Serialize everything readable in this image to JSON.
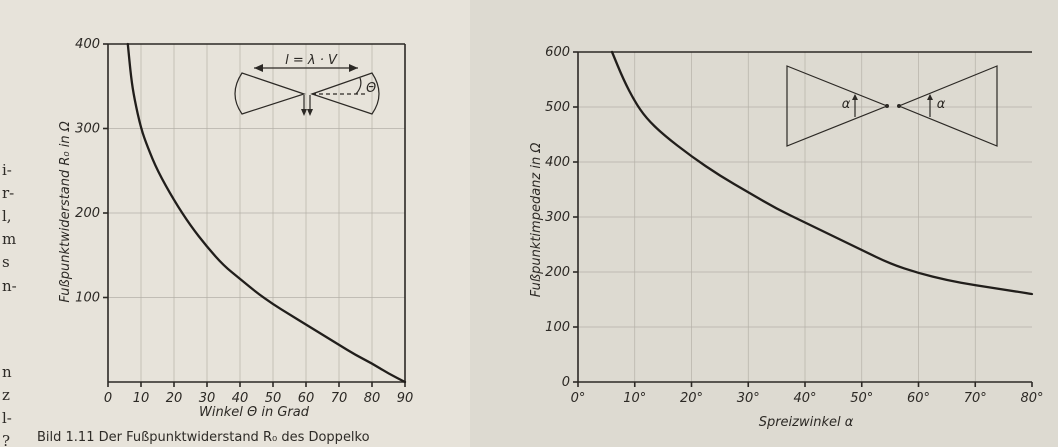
{
  "page": {
    "margin_text": [
      "i-",
      "r-",
      "l,",
      "m",
      "s",
      "n-",
      "n",
      "z",
      "l-",
      "?"
    ],
    "caption_fragment": "Bild 1.11 Der Fußpunktwiderstand R₀ des Doppelko"
  },
  "chart_data": [
    {
      "type": "line",
      "title": "",
      "xlabel": "Winkel Θ in Grad",
      "ylabel": "Fußpunktwiderstand R₀ in Ω",
      "xlim": [
        0,
        90
      ],
      "ylim": [
        0,
        400
      ],
      "x_ticks": [
        "0",
        "10",
        "20",
        "30",
        "40",
        "50",
        "60",
        "70",
        "80",
        "90"
      ],
      "y_ticks": [
        "100",
        "200",
        "300",
        "400"
      ],
      "grid": true,
      "series": [
        {
          "x": [
            6,
            7,
            8,
            10,
            12,
            15,
            20,
            25,
            30,
            35,
            40,
            45,
            50,
            55,
            60,
            65,
            70,
            75,
            80,
            85,
            90
          ],
          "y": [
            400,
            360,
            335,
            300,
            278,
            250,
            215,
            185,
            160,
            138,
            122,
            106,
            92,
            80,
            68,
            56,
            44,
            32,
            22,
            10,
            0
          ]
        }
      ],
      "inset": {
        "formula": "l = λ · V",
        "angle_label": "Θ"
      }
    },
    {
      "type": "line",
      "title": "",
      "xlabel": "Spreizwinkel α",
      "ylabel": "Fußpunktimpedanz in Ω",
      "xlim": [
        0,
        80
      ],
      "ylim": [
        0,
        600
      ],
      "x_ticks": [
        "0°",
        "10°",
        "20°",
        "30°",
        "40°",
        "50°",
        "60°",
        "70°",
        "80°"
      ],
      "y_ticks": [
        "0",
        "100",
        "200",
        "300",
        "400",
        "500",
        "600"
      ],
      "grid": true,
      "series": [
        {
          "x": [
            6,
            8,
            10,
            12,
            15,
            20,
            25,
            30,
            35,
            40,
            45,
            50,
            55,
            60,
            65,
            70,
            75,
            80
          ],
          "y": [
            600,
            550,
            510,
            480,
            450,
            410,
            375,
            345,
            315,
            290,
            265,
            240,
            215,
            198,
            185,
            176,
            168,
            160
          ]
        }
      ],
      "inset": {
        "angle_label_left": "α",
        "angle_label_right": "α"
      }
    }
  ]
}
